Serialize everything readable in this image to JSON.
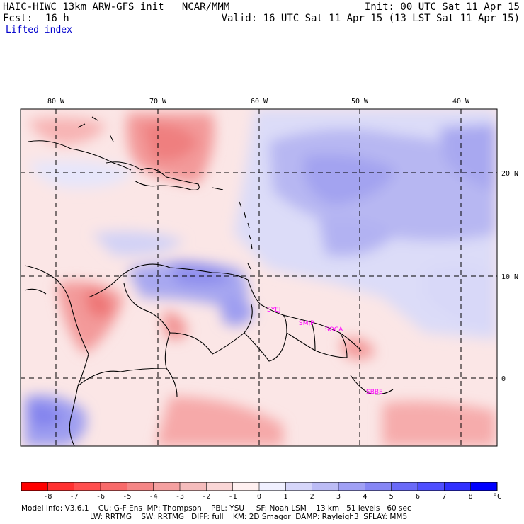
{
  "header": {
    "title_left": "HAIC-HIWC 13km ARW-GFS init   NCAR/MMM",
    "init": "Init: 00 UTC Sat 11 Apr 15",
    "fcst_label": "Fcst:",
    "fcst_value": "16 h",
    "valid": "Valid: 16 UTC Sat 11 Apr 15 (13 LST Sat 11 Apr 15)",
    "field": "Lifted index"
  },
  "map": {
    "lon_labels": [
      "80 W",
      "70 W",
      "60 W",
      "50 W",
      "40 W"
    ],
    "lat_labels": [
      "20 N",
      "10 N",
      "0"
    ],
    "stations": [
      "SYEJ",
      "SMJP",
      "SOCA",
      "SBBE"
    ]
  },
  "colorbar": {
    "ticks": [
      "-8",
      "-7",
      "-6",
      "-5",
      "-4",
      "-3",
      "-2",
      "-1",
      "0",
      "1",
      "2",
      "3",
      "4",
      "5",
      "6",
      "7",
      "8"
    ],
    "unit": "°C",
    "colors": [
      "#ff0000",
      "#ff3030",
      "#ff4f4f",
      "#f86a6a",
      "#f58686",
      "#f5a0a0",
      "#f5bcbc",
      "#fad6d6",
      "#fff0f0",
      "#f0f0ff",
      "#d6d6fa",
      "#bcbcf5",
      "#a0a0f5",
      "#8686f5",
      "#6a6af8",
      "#4f4fff",
      "#3030ff",
      "#0000ff"
    ]
  },
  "footer": {
    "line1": "Model Info: V3.6.1    CU: G-F Ens  MP: Thompson    PBL: YSU     SF: Noah LSM    13 km   51 levels   60 sec",
    "line2": "LW: RRTMG    SW: RRTMG   DIFF: full    KM: 2D Smagor  DAMP: Rayleigh3  SFLAY: MM5"
  }
}
